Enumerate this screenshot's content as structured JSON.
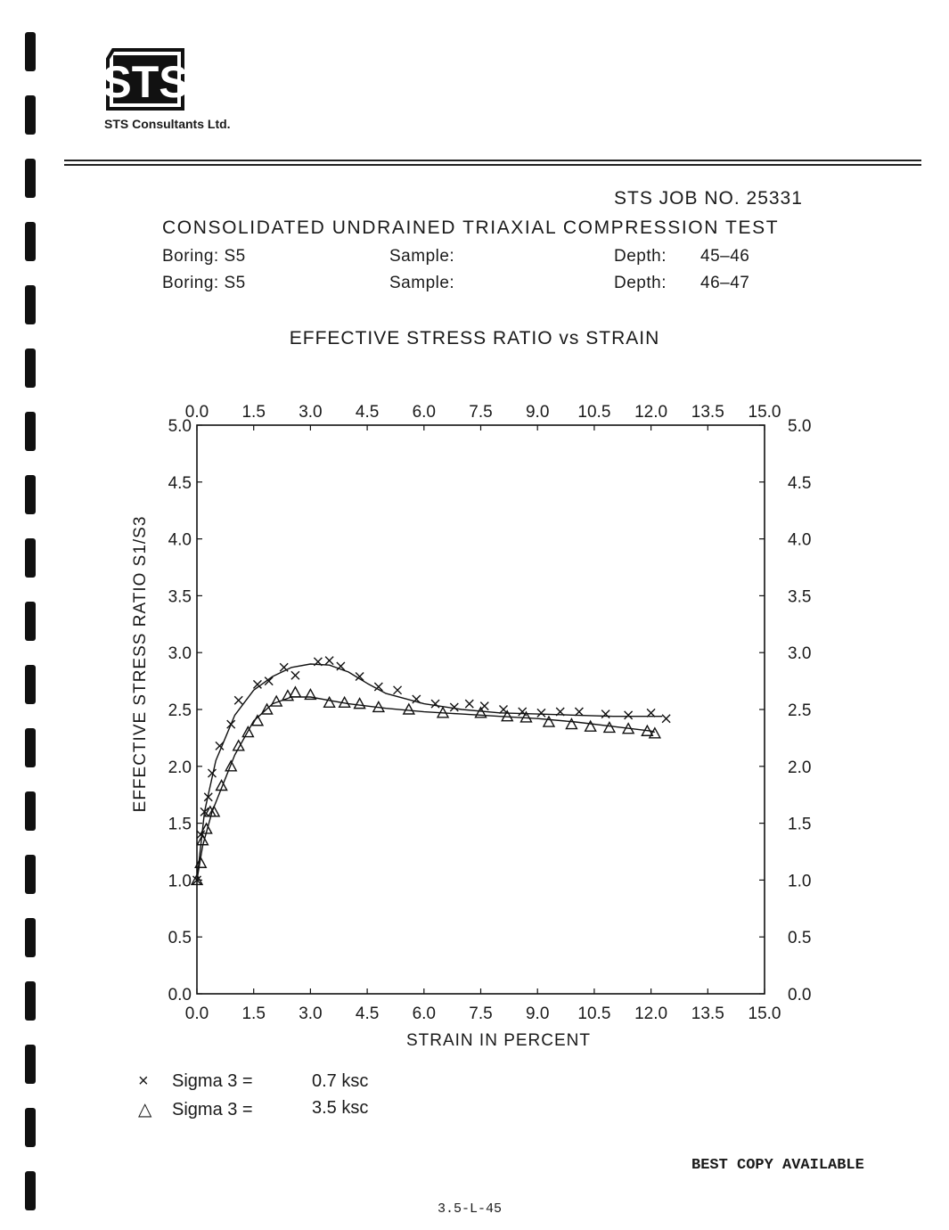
{
  "company": {
    "logo_text": "STS",
    "name": "STS Consultants Ltd."
  },
  "header": {
    "job_no": "STS JOB NO. 25331",
    "test_title": "CONSOLIDATED UNDRAINED TRIAXIAL COMPRESSION TEST",
    "rows": [
      {
        "boring": "Boring: S5",
        "sample": "Sample:",
        "depth_label": "Depth:",
        "depth_value": "45–46"
      },
      {
        "boring": "Boring: S5",
        "sample": "Sample:",
        "depth_label": "Depth:",
        "depth_value": "46–47"
      }
    ]
  },
  "chart_data": {
    "type": "scatter",
    "title": "EFFECTIVE STRESS RATIO vs STRAIN",
    "xlabel": "STRAIN IN PERCENT",
    "ylabel": "EFFECTIVE STRESS RATIO  S1/S3",
    "xlim": [
      0,
      15
    ],
    "ylim": [
      0,
      5
    ],
    "x_ticks": [
      "0.0",
      "1.5",
      "3.0",
      "4.5",
      "6.0",
      "7.5",
      "9.0",
      "10.5",
      "12.0",
      "13.5",
      "15.0"
    ],
    "y_ticks": [
      "0.0",
      "0.5",
      "1.0",
      "1.5",
      "2.0",
      "2.5",
      "3.0",
      "3.5",
      "4.0",
      "4.5",
      "5.0"
    ],
    "grid": false,
    "series": [
      {
        "name": "Sigma 3 = 0.7 ksc",
        "marker": "x",
        "x": [
          0.0,
          0.1,
          0.2,
          0.3,
          0.4,
          0.6,
          0.9,
          1.1,
          1.6,
          1.9,
          2.3,
          2.6,
          3.2,
          3.5,
          3.8,
          4.3,
          4.8,
          5.3,
          5.8,
          6.3,
          6.8,
          7.2,
          7.6,
          8.1,
          8.6,
          9.1,
          9.6,
          10.1,
          10.8,
          11.4,
          12.0,
          12.4
        ],
        "y": [
          1.0,
          1.4,
          1.6,
          1.73,
          1.94,
          2.18,
          2.37,
          2.58,
          2.72,
          2.75,
          2.87,
          2.8,
          2.92,
          2.93,
          2.88,
          2.79,
          2.7,
          2.67,
          2.59,
          2.55,
          2.52,
          2.55,
          2.53,
          2.5,
          2.48,
          2.47,
          2.48,
          2.48,
          2.46,
          2.45,
          2.47,
          2.42
        ]
      },
      {
        "name": "Sigma 3 = 3.5 ksc",
        "marker": "triangle",
        "x": [
          0.0,
          0.1,
          0.15,
          0.25,
          0.35,
          0.45,
          0.65,
          0.9,
          1.1,
          1.35,
          1.6,
          1.85,
          2.1,
          2.4,
          2.6,
          3.0,
          3.5,
          3.9,
          4.3,
          4.8,
          5.6,
          6.5,
          7.5,
          8.2,
          8.7,
          9.3,
          9.9,
          10.4,
          10.9,
          11.4,
          11.9,
          12.1
        ],
        "y": [
          1.0,
          1.15,
          1.35,
          1.45,
          1.6,
          1.6,
          1.83,
          2.0,
          2.18,
          2.3,
          2.4,
          2.5,
          2.57,
          2.62,
          2.65,
          2.63,
          2.56,
          2.56,
          2.55,
          2.52,
          2.5,
          2.47,
          2.47,
          2.44,
          2.43,
          2.39,
          2.37,
          2.35,
          2.34,
          2.33,
          2.31,
          2.29
        ]
      }
    ],
    "fit_lines": [
      {
        "x": [
          0.0,
          0.2,
          0.5,
          1.0,
          1.5,
          2.0,
          2.5,
          3.0,
          3.5,
          4.0,
          4.5,
          5.0,
          6.0,
          7.0,
          8.0,
          9.0,
          10.0,
          11.0,
          12.0,
          12.3
        ],
        "y": [
          1.0,
          1.6,
          2.05,
          2.45,
          2.67,
          2.79,
          2.87,
          2.9,
          2.89,
          2.83,
          2.73,
          2.64,
          2.55,
          2.5,
          2.47,
          2.46,
          2.45,
          2.44,
          2.44,
          2.44
        ]
      },
      {
        "x": [
          0.0,
          0.15,
          0.4,
          0.7,
          1.0,
          1.5,
          2.0,
          2.5,
          3.0,
          3.5,
          4.0,
          5.0,
          6.0,
          7.0,
          8.0,
          9.0,
          10.0,
          11.0,
          12.0,
          12.1
        ],
        "y": [
          1.0,
          1.3,
          1.6,
          1.85,
          2.1,
          2.4,
          2.55,
          2.61,
          2.61,
          2.58,
          2.55,
          2.51,
          2.48,
          2.46,
          2.44,
          2.42,
          2.39,
          2.35,
          2.31,
          2.3
        ]
      }
    ]
  },
  "legend": [
    {
      "symbol": "×",
      "label": "Sigma 3 =",
      "value": "0.7 ksc"
    },
    {
      "symbol": "△",
      "label": "Sigma 3 =",
      "value": "3.5 ksc"
    }
  ],
  "footer": {
    "notice": "BEST COPY AVAILABLE",
    "page_number": "3.5-L-45"
  }
}
